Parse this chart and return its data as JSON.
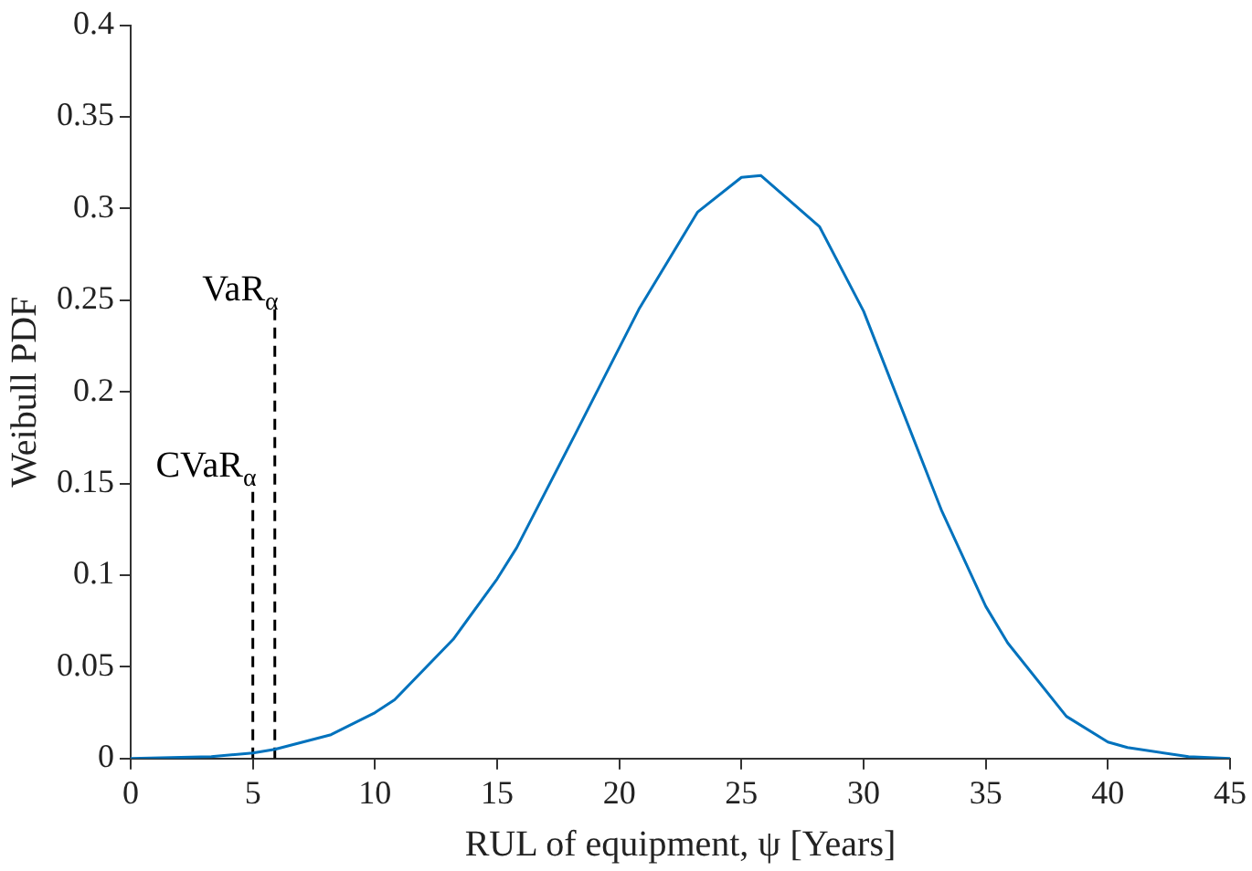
{
  "chart_data": {
    "type": "line",
    "xlabel": "RUL of equipment, ψ [Years]",
    "ylabel": "Weibull PDF",
    "xlim": [
      0,
      45
    ],
    "xticks": [
      0,
      5,
      10,
      15,
      20,
      25,
      30,
      35,
      40,
      45
    ],
    "ylim": [
      0,
      0.4
    ],
    "yticks": [
      0,
      0.05,
      0.1,
      0.15,
      0.2,
      0.25,
      0.3,
      0.35,
      0.4
    ],
    "grid": false,
    "legend": false,
    "marker": "none",
    "series": [
      {
        "color": "#0072bd",
        "line_style": "solid",
        "x": [
          0,
          3.3,
          5,
          5.9,
          8.2,
          10,
          10.8,
          13.2,
          15,
          15.8,
          18.2,
          20.8,
          23.2,
          25,
          25.8,
          28.2,
          30,
          33.2,
          35,
          35.9,
          38.3,
          40,
          40.8,
          43.3,
          45
        ],
        "values": [
          0,
          0.001,
          0.003,
          0.005,
          0.013,
          0.025,
          0.032,
          0.065,
          0.098,
          0.115,
          0.177,
          0.245,
          0.298,
          0.317,
          0.318,
          0.29,
          0.244,
          0.135,
          0.083,
          0.063,
          0.023,
          0.009,
          0.006,
          0.001,
          0
        ]
      },
      {
        "color": "#000000",
        "line_style": "dashed",
        "x": [
          5,
          5
        ],
        "values": [
          0,
          0.15
        ]
      },
      {
        "color": "#000000",
        "line_style": "dashed",
        "x": [
          5.9,
          5.9
        ],
        "values": [
          0,
          0.246
        ]
      }
    ],
    "annotations": [
      {
        "text": "CVaR$_{α}$",
        "x": 5,
        "y": 0.15
      },
      {
        "text": "VaR$_{α}$",
        "x": 5.9,
        "y": 0.246
      }
    ]
  }
}
